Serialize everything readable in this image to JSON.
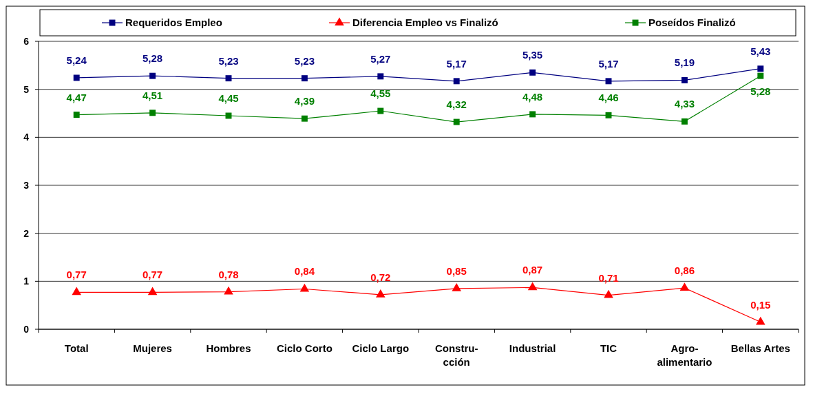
{
  "chart_data": {
    "type": "line",
    "categories": [
      "Total",
      "Mujeres",
      "Hombres",
      "Ciclo Corto",
      "Ciclo Largo",
      "Constru-\ncción",
      "Industrial",
      "TIC",
      "Agro-\nalimentario",
      "Bellas Artes"
    ],
    "series": [
      {
        "name": "Requeridos Empleo",
        "color": "#000080",
        "marker": "square",
        "values": [
          5.24,
          5.28,
          5.23,
          5.23,
          5.27,
          5.17,
          5.35,
          5.17,
          5.19,
          5.43
        ],
        "value_labels": [
          "5,24",
          "5,28",
          "5,23",
          "5,23",
          "5,27",
          "5,17",
          "5,35",
          "5,17",
          "5,19",
          "5,43"
        ]
      },
      {
        "name": "Diferencia Empleo vs Finalizó",
        "color": "#ff0000",
        "marker": "triangle",
        "values": [
          0.77,
          0.77,
          0.78,
          0.84,
          0.72,
          0.85,
          0.87,
          0.71,
          0.86,
          0.15
        ],
        "value_labels": [
          "0,77",
          "0,77",
          "0,78",
          "0,84",
          "0,72",
          "0,85",
          "0,87",
          "0,71",
          "0,86",
          "0,15"
        ]
      },
      {
        "name": "Poseídos Finalizó",
        "color": "#008000",
        "marker": "square",
        "values": [
          4.47,
          4.51,
          4.45,
          4.39,
          4.55,
          4.32,
          4.48,
          4.46,
          4.33,
          5.28
        ],
        "value_labels": [
          "4,47",
          "4,51",
          "4,45",
          "4,39",
          "4,55",
          "4,32",
          "4,48",
          "4,46",
          "4,33",
          "5,28"
        ]
      }
    ],
    "ylim": [
      0,
      6
    ],
    "yticks": [
      0,
      1,
      2,
      3,
      4,
      5,
      6
    ],
    "grid": "y",
    "legend": "top"
  }
}
